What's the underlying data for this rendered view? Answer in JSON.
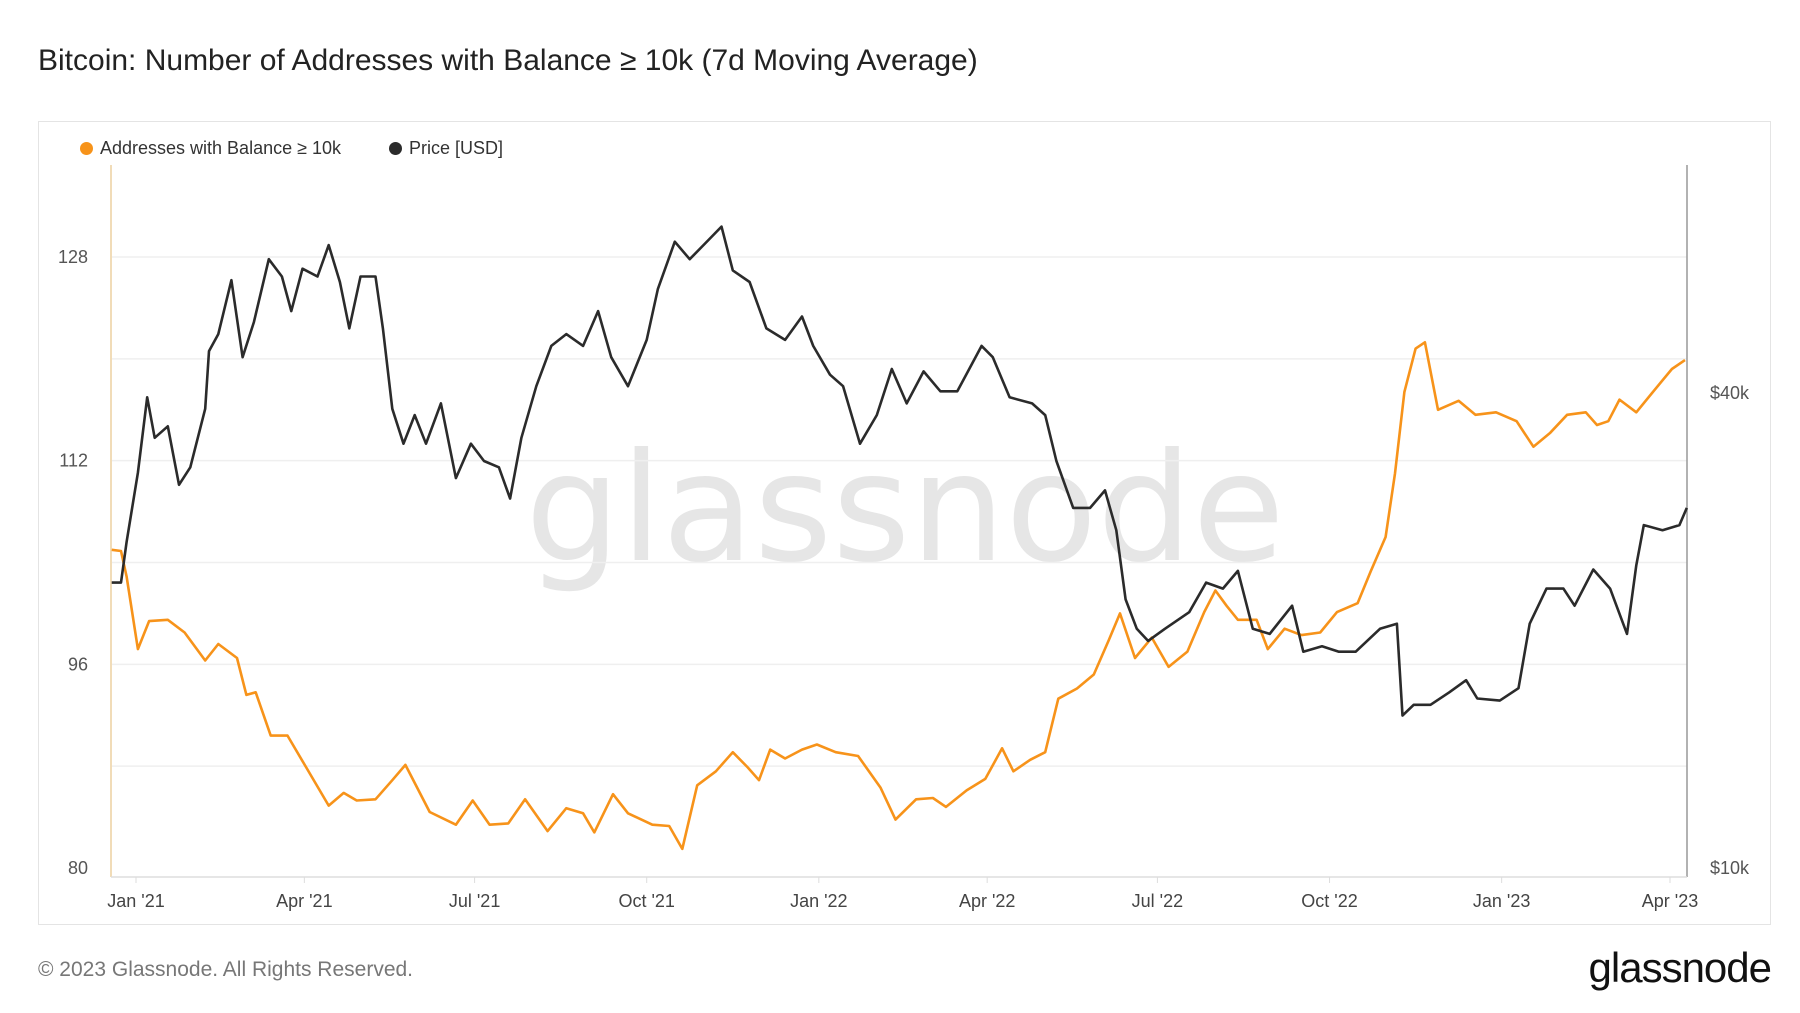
{
  "title": "Bitcoin: Number of Addresses with Balance ≥ 10k (7d Moving Average)",
  "footer": "© 2023 Glassnode. All Rights Reserved.",
  "logo": "glassnode",
  "watermark": "glassnode",
  "chart_data": {
    "type": "line",
    "title": "Bitcoin: Number of Addresses with Balance ≥ 10k (7d Moving Average)",
    "legend_position": "top-left",
    "grid": true,
    "x_ticks": [
      "Jan '21",
      "Apr '21",
      "Jul '21",
      "Oct '21",
      "Jan '22",
      "Apr '22",
      "Jul '22",
      "Oct '22",
      "Jan '23",
      "Apr '23"
    ],
    "x_tick_dates": [
      "2021-01-01",
      "2021-04-01",
      "2021-07-01",
      "2021-10-01",
      "2022-01-01",
      "2022-04-01",
      "2022-07-01",
      "2022-10-01",
      "2023-01-01",
      "2023-04-01"
    ],
    "y_left": {
      "ticks": [
        "128",
        "112",
        "96",
        "80"
      ],
      "tick_values": [
        128,
        112,
        96,
        80
      ],
      "range": [
        80,
        128
      ]
    },
    "y_right": {
      "scale": "log",
      "ticks": [
        "$40k",
        "$10k"
      ],
      "tick_values": [
        40000,
        10000
      ]
    },
    "series": [
      {
        "name": "Addresses with Balance ≥ 10k",
        "color": "#f7931a",
        "axis": "left",
        "points": [
          [
            "2020-12-19",
            105.0
          ],
          [
            "2020-12-24",
            104.9
          ],
          [
            "2020-12-27",
            102.9
          ],
          [
            "2021-01-02",
            97.2
          ],
          [
            "2021-01-08",
            99.4
          ],
          [
            "2021-01-18",
            99.5
          ],
          [
            "2021-01-27",
            98.5
          ],
          [
            "2021-02-07",
            96.3
          ],
          [
            "2021-02-14",
            97.6
          ],
          [
            "2021-02-24",
            96.5
          ],
          [
            "2021-03-01",
            93.6
          ],
          [
            "2021-03-06",
            93.8
          ],
          [
            "2021-03-14",
            90.4
          ],
          [
            "2021-03-23",
            90.4
          ],
          [
            "2021-04-02",
            87.9
          ],
          [
            "2021-04-14",
            84.9
          ],
          [
            "2021-04-22",
            85.9
          ],
          [
            "2021-04-29",
            85.3
          ],
          [
            "2021-05-09",
            85.4
          ],
          [
            "2021-05-18",
            86.9
          ],
          [
            "2021-05-25",
            88.1
          ],
          [
            "2021-06-07",
            84.4
          ],
          [
            "2021-06-21",
            83.4
          ],
          [
            "2021-06-30",
            85.3
          ],
          [
            "2021-07-09",
            83.4
          ],
          [
            "2021-07-19",
            83.5
          ],
          [
            "2021-07-28",
            85.4
          ],
          [
            "2021-08-09",
            82.9
          ],
          [
            "2021-08-19",
            84.7
          ],
          [
            "2021-08-28",
            84.3
          ],
          [
            "2021-09-03",
            82.8
          ],
          [
            "2021-09-13",
            85.8
          ],
          [
            "2021-09-21",
            84.3
          ],
          [
            "2021-10-04",
            83.4
          ],
          [
            "2021-10-13",
            83.3
          ],
          [
            "2021-10-20",
            81.5
          ],
          [
            "2021-10-28",
            86.5
          ],
          [
            "2021-11-07",
            87.6
          ],
          [
            "2021-11-16",
            89.1
          ],
          [
            "2021-11-24",
            87.9
          ],
          [
            "2021-11-30",
            86.9
          ],
          [
            "2021-12-06",
            89.3
          ],
          [
            "2021-12-14",
            88.6
          ],
          [
            "2021-12-23",
            89.3
          ],
          [
            "2021-12-31",
            89.7
          ],
          [
            "2022-01-10",
            89.1
          ],
          [
            "2022-01-22",
            88.8
          ],
          [
            "2022-02-03",
            86.3
          ],
          [
            "2022-02-11",
            83.8
          ],
          [
            "2022-02-22",
            85.4
          ],
          [
            "2022-03-03",
            85.5
          ],
          [
            "2022-03-10",
            84.8
          ],
          [
            "2022-03-21",
            86.1
          ],
          [
            "2022-03-31",
            87.0
          ],
          [
            "2022-04-09",
            89.4
          ],
          [
            "2022-04-15",
            87.6
          ],
          [
            "2022-04-24",
            88.5
          ],
          [
            "2022-05-02",
            89.1
          ],
          [
            "2022-05-09",
            93.3
          ],
          [
            "2022-05-19",
            94.1
          ],
          [
            "2022-05-28",
            95.2
          ],
          [
            "2022-06-05",
            97.9
          ],
          [
            "2022-06-11",
            100.0
          ],
          [
            "2022-06-19",
            96.5
          ],
          [
            "2022-06-28",
            98.1
          ],
          [
            "2022-07-07",
            95.8
          ],
          [
            "2022-07-17",
            97.0
          ],
          [
            "2022-07-26",
            100.1
          ],
          [
            "2022-08-01",
            101.8
          ],
          [
            "2022-08-07",
            100.6
          ],
          [
            "2022-08-13",
            99.5
          ],
          [
            "2022-08-23",
            99.5
          ],
          [
            "2022-08-29",
            97.2
          ],
          [
            "2022-09-07",
            98.8
          ],
          [
            "2022-09-16",
            98.3
          ],
          [
            "2022-09-26",
            98.5
          ],
          [
            "2022-10-05",
            100.1
          ],
          [
            "2022-10-16",
            100.8
          ],
          [
            "2022-10-23",
            103.3
          ],
          [
            "2022-10-31",
            106.0
          ],
          [
            "2022-11-05",
            111.0
          ],
          [
            "2022-11-10",
            117.4
          ],
          [
            "2022-11-16",
            120.8
          ],
          [
            "2022-11-21",
            121.3
          ],
          [
            "2022-11-28",
            116.0
          ],
          [
            "2022-12-09",
            116.7
          ],
          [
            "2022-12-18",
            115.6
          ],
          [
            "2022-12-29",
            115.8
          ],
          [
            "2023-01-09",
            115.1
          ],
          [
            "2023-01-18",
            113.1
          ],
          [
            "2023-01-27",
            114.2
          ],
          [
            "2023-02-05",
            115.6
          ],
          [
            "2023-02-15",
            115.8
          ],
          [
            "2023-02-21",
            114.8
          ],
          [
            "2023-02-27",
            115.1
          ],
          [
            "2023-03-05",
            116.8
          ],
          [
            "2023-03-14",
            115.8
          ],
          [
            "2023-03-24",
            117.6
          ],
          [
            "2023-04-02",
            119.2
          ],
          [
            "2023-04-09",
            119.9
          ]
        ]
      },
      {
        "name": "Price [USD]",
        "color": "#2b2b2b",
        "axis": "right",
        "points": [
          [
            "2020-12-19",
            23000
          ],
          [
            "2020-12-24",
            23000
          ],
          [
            "2020-12-27",
            25900
          ],
          [
            "2021-01-02",
            31700
          ],
          [
            "2021-01-07",
            39500
          ],
          [
            "2021-01-11",
            35100
          ],
          [
            "2021-01-18",
            36300
          ],
          [
            "2021-01-24",
            30600
          ],
          [
            "2021-01-30",
            32200
          ],
          [
            "2021-02-07",
            38200
          ],
          [
            "2021-02-09",
            45200
          ],
          [
            "2021-02-14",
            47500
          ],
          [
            "2021-02-21",
            55600
          ],
          [
            "2021-02-27",
            44400
          ],
          [
            "2021-03-05",
            49200
          ],
          [
            "2021-03-13",
            59100
          ],
          [
            "2021-03-20",
            56200
          ],
          [
            "2021-03-25",
            50800
          ],
          [
            "2021-03-31",
            57500
          ],
          [
            "2021-04-08",
            56200
          ],
          [
            "2021-04-14",
            61600
          ],
          [
            "2021-04-20",
            55300
          ],
          [
            "2021-04-25",
            48300
          ],
          [
            "2021-05-01",
            56200
          ],
          [
            "2021-05-09",
            56200
          ],
          [
            "2021-05-13",
            48300
          ],
          [
            "2021-05-18",
            38200
          ],
          [
            "2021-05-24",
            34500
          ],
          [
            "2021-05-30",
            37500
          ],
          [
            "2021-06-05",
            34500
          ],
          [
            "2021-06-13",
            38800
          ],
          [
            "2021-06-21",
            31200
          ],
          [
            "2021-06-29",
            34500
          ],
          [
            "2021-07-06",
            32800
          ],
          [
            "2021-07-14",
            32200
          ],
          [
            "2021-07-20",
            29400
          ],
          [
            "2021-07-26",
            35100
          ],
          [
            "2021-08-03",
            40800
          ],
          [
            "2021-08-11",
            45900
          ],
          [
            "2021-08-19",
            47500
          ],
          [
            "2021-08-28",
            45900
          ],
          [
            "2021-09-05",
            50800
          ],
          [
            "2021-09-12",
            44400
          ],
          [
            "2021-09-21",
            40800
          ],
          [
            "2021-10-01",
            46700
          ],
          [
            "2021-10-07",
            54200
          ],
          [
            "2021-10-16",
            62200
          ],
          [
            "2021-10-24",
            59100
          ],
          [
            "2021-11-01",
            61800
          ],
          [
            "2021-11-10",
            65000
          ],
          [
            "2021-11-16",
            57200
          ],
          [
            "2021-11-25",
            55300
          ],
          [
            "2021-12-04",
            48300
          ],
          [
            "2021-12-14",
            46700
          ],
          [
            "2021-12-23",
            50000
          ],
          [
            "2021-12-29",
            45900
          ],
          [
            "2022-01-07",
            42200
          ],
          [
            "2022-01-14",
            40800
          ],
          [
            "2022-01-23",
            34500
          ],
          [
            "2022-02-01",
            37500
          ],
          [
            "2022-02-09",
            42900
          ],
          [
            "2022-02-17",
            38800
          ],
          [
            "2022-02-26",
            42600
          ],
          [
            "2022-03-07",
            40200
          ],
          [
            "2022-03-16",
            40200
          ],
          [
            "2022-03-29",
            45900
          ],
          [
            "2022-04-04",
            44400
          ],
          [
            "2022-04-13",
            39500
          ],
          [
            "2022-04-25",
            38800
          ],
          [
            "2022-05-02",
            37500
          ],
          [
            "2022-05-08",
            32800
          ],
          [
            "2022-05-17",
            28600
          ],
          [
            "2022-05-26",
            28600
          ],
          [
            "2022-06-03",
            30100
          ],
          [
            "2022-06-09",
            26800
          ],
          [
            "2022-06-14",
            21900
          ],
          [
            "2022-06-20",
            20100
          ],
          [
            "2022-06-26",
            19400
          ],
          [
            "2022-07-05",
            20100
          ],
          [
            "2022-07-18",
            21100
          ],
          [
            "2022-07-27",
            23000
          ],
          [
            "2022-08-05",
            22600
          ],
          [
            "2022-08-13",
            23800
          ],
          [
            "2022-08-21",
            20100
          ],
          [
            "2022-08-30",
            19800
          ],
          [
            "2022-09-11",
            21500
          ],
          [
            "2022-09-17",
            18800
          ],
          [
            "2022-09-27",
            19100
          ],
          [
            "2022-10-06",
            18800
          ],
          [
            "2022-10-15",
            18800
          ],
          [
            "2022-10-28",
            20100
          ],
          [
            "2022-11-06",
            20400
          ],
          [
            "2022-11-09",
            15600
          ],
          [
            "2022-11-15",
            16100
          ],
          [
            "2022-11-24",
            16100
          ],
          [
            "2022-12-04",
            16700
          ],
          [
            "2022-12-13",
            17300
          ],
          [
            "2022-12-19",
            16400
          ],
          [
            "2022-12-31",
            16300
          ],
          [
            "2023-01-10",
            16900
          ],
          [
            "2023-01-16",
            20400
          ],
          [
            "2023-01-25",
            22600
          ],
          [
            "2023-02-03",
            22600
          ],
          [
            "2023-02-09",
            21500
          ],
          [
            "2023-02-19",
            23900
          ],
          [
            "2023-02-28",
            22600
          ],
          [
            "2023-03-09",
            19800
          ],
          [
            "2023-03-14",
            24200
          ],
          [
            "2023-03-18",
            27200
          ],
          [
            "2023-03-28",
            26800
          ],
          [
            "2023-04-06",
            27200
          ],
          [
            "2023-04-10",
            28600
          ]
        ]
      }
    ]
  }
}
